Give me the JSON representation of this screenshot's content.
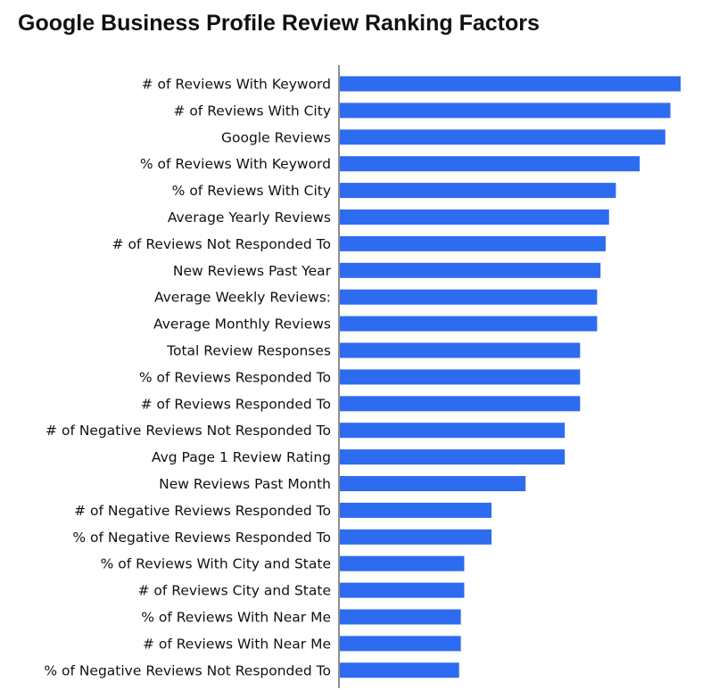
{
  "chart_data": {
    "type": "bar",
    "orientation": "horizontal",
    "title": "Google Business Profile Review Ranking Factors",
    "xlabel": "",
    "ylabel": "",
    "grid": false,
    "legend": "none",
    "bar_color": "#2d6bf0",
    "xlim": [
      0,
      100
    ],
    "categories": [
      "# of Reviews With Keyword",
      "# of Reviews With City",
      "Google Reviews",
      "% of Reviews With Keyword",
      "% of Reviews With City",
      "Average Yearly Reviews",
      "# of Reviews Not Responded To",
      "New Reviews Past Year",
      "Average Weekly Reviews:",
      "Average Monthly Reviews",
      "Total Review Responses",
      "% of Reviews Responded To",
      "# of Reviews Responded To",
      "# of Negative Reviews Not Responded To",
      "Avg Page 1 Review Rating",
      "New Reviews Past Month",
      "# of Negative Reviews Responded To",
      "% of Negative Reviews Responded To",
      "% of Reviews With City and State",
      "# of Reviews City and State",
      "% of Reviews With Near Me",
      "# of Reviews With Near Me",
      "% of Negative Reviews Not Responded To"
    ],
    "values": [
      100,
      97,
      95.5,
      88,
      81,
      79,
      78,
      76.5,
      75.5,
      75.5,
      70.5,
      70.5,
      70.5,
      66,
      66,
      54.5,
      44.5,
      44.5,
      36.5,
      36.5,
      35.5,
      35.5,
      35
    ]
  }
}
